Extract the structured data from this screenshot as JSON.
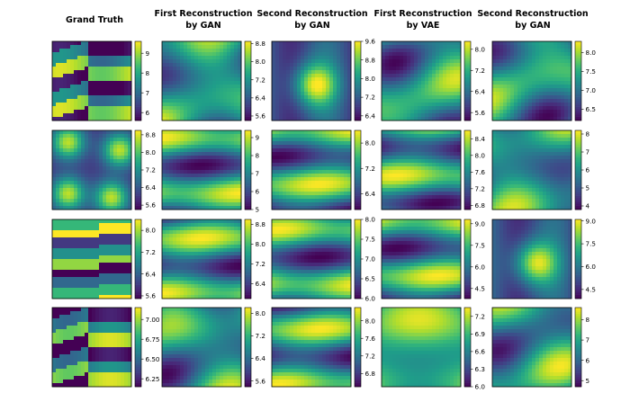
{
  "figure": {
    "columns": [
      {
        "title_lines": [
          "Grand Truth"
        ]
      },
      {
        "title_lines": [
          "First Reconstruction",
          "by GAN"
        ]
      },
      {
        "title_lines": [
          "Second Reconstruction",
          "by GAN"
        ]
      },
      {
        "title_lines": [
          "First Reconstruction",
          "by VAE"
        ]
      },
      {
        "title_lines": [
          "Second Reconstruction",
          "by GAN"
        ]
      }
    ]
  },
  "colors": {
    "viridis": [
      "#440154",
      "#482878",
      "#3e4989",
      "#31688e",
      "#26828e",
      "#1f9e89",
      "#35b779",
      "#6ece58",
      "#b5de2b",
      "#fde725"
    ]
  },
  "chart_data": [
    {
      "type": "heatmap",
      "row": 0,
      "col": 0,
      "pattern": "stripes-diag",
      "range": [
        5.6,
        9.6
      ],
      "ticks": [
        6,
        7,
        8,
        9
      ]
    },
    {
      "type": "heatmap",
      "row": 0,
      "col": 1,
      "pattern": "smooth",
      "range": [
        5.4,
        8.9
      ],
      "ticks": [
        5.6,
        6.4,
        7.2,
        8.0,
        8.8
      ]
    },
    {
      "type": "heatmap",
      "row": 0,
      "col": 2,
      "pattern": "blob",
      "range": [
        6.2,
        9.6
      ],
      "ticks": [
        6.4,
        7.2,
        8.0,
        8.8,
        9.6
      ]
    },
    {
      "type": "heatmap",
      "row": 0,
      "col": 3,
      "pattern": "smooth",
      "range": [
        5.3,
        8.3
      ],
      "ticks": [
        5.6,
        6.4,
        7.2,
        8.0
      ]
    },
    {
      "type": "heatmap",
      "row": 0,
      "col": 4,
      "pattern": "smooth",
      "range": [
        6.2,
        8.3
      ],
      "ticks": [
        6.5,
        7.0,
        7.5,
        8.0
      ]
    },
    {
      "type": "heatmap",
      "row": 1,
      "col": 0,
      "pattern": "blobs",
      "range": [
        5.4,
        9.0
      ],
      "ticks": [
        5.6,
        6.4,
        7.2,
        8.0,
        8.8
      ]
    },
    {
      "type": "heatmap",
      "row": 1,
      "col": 1,
      "pattern": "stripes",
      "range": [
        5.0,
        9.4
      ],
      "ticks": [
        5,
        6,
        7,
        8,
        9
      ]
    },
    {
      "type": "heatmap",
      "row": 1,
      "col": 2,
      "pattern": "stripes",
      "range": [
        5.9,
        8.4
      ],
      "ticks": [
        6.4,
        7.2,
        8.0
      ]
    },
    {
      "type": "heatmap",
      "row": 1,
      "col": 3,
      "pattern": "stripes",
      "range": [
        6.7,
        8.6
      ],
      "ticks": [
        6.8,
        7.2,
        7.6,
        8.0,
        8.4
      ]
    },
    {
      "type": "heatmap",
      "row": 1,
      "col": 4,
      "pattern": "smooth",
      "range": [
        3.8,
        8.2
      ],
      "ticks": [
        4,
        5,
        6,
        7,
        8
      ]
    },
    {
      "type": "heatmap",
      "row": 2,
      "col": 0,
      "pattern": "stripes-steps",
      "range": [
        5.5,
        8.4
      ],
      "ticks": [
        5.6,
        6.4,
        7.2,
        8.0
      ]
    },
    {
      "type": "heatmap",
      "row": 2,
      "col": 1,
      "pattern": "stripes",
      "range": [
        5.8,
        9.0
      ],
      "ticks": [
        6.4,
        7.2,
        8.0,
        8.8
      ]
    },
    {
      "type": "heatmap",
      "row": 2,
      "col": 2,
      "pattern": "stripes",
      "range": [
        6.0,
        8.0
      ],
      "ticks": [
        6.0,
        6.5,
        7.0,
        7.5,
        8.0
      ]
    },
    {
      "type": "heatmap",
      "row": 2,
      "col": 3,
      "pattern": "stripes",
      "range": [
        3.8,
        9.3
      ],
      "ticks": [
        4.5,
        6.0,
        7.5,
        9.0
      ]
    },
    {
      "type": "heatmap",
      "row": 2,
      "col": 4,
      "pattern": "blob",
      "range": [
        3.9,
        9.1
      ],
      "ticks": [
        4.5,
        6.0,
        7.5,
        9.0
      ]
    },
    {
      "type": "heatmap",
      "row": 3,
      "col": 0,
      "pattern": "stripes-diag",
      "range": [
        6.15,
        7.15
      ],
      "ticks": [
        6.25,
        6.5,
        6.75,
        7.0
      ]
    },
    {
      "type": "heatmap",
      "row": 3,
      "col": 1,
      "pattern": "smooth",
      "range": [
        5.4,
        8.2
      ],
      "ticks": [
        5.6,
        6.4,
        7.2,
        8.0
      ]
    },
    {
      "type": "heatmap",
      "row": 3,
      "col": 2,
      "pattern": "stripes",
      "range": [
        6.5,
        8.3
      ],
      "ticks": [
        6.8,
        7.2,
        7.6,
        8.0
      ]
    },
    {
      "type": "heatmap",
      "row": 3,
      "col": 3,
      "pattern": "smooth-bright",
      "range": [
        6.0,
        7.35
      ],
      "ticks": [
        6.0,
        6.3,
        6.6,
        6.9,
        7.2
      ]
    },
    {
      "type": "heatmap",
      "row": 3,
      "col": 4,
      "pattern": "smooth",
      "range": [
        4.7,
        8.6
      ],
      "ticks": [
        5,
        6,
        7,
        8
      ]
    }
  ]
}
